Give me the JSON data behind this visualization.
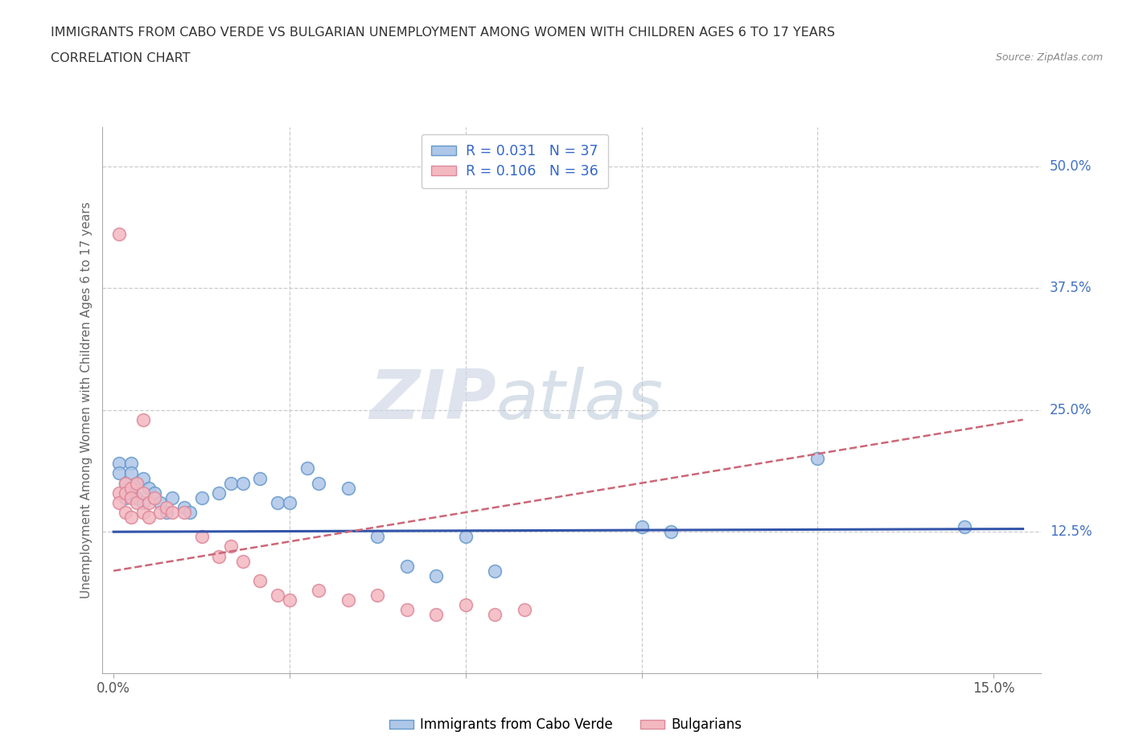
{
  "title": "IMMIGRANTS FROM CABO VERDE VS BULGARIAN UNEMPLOYMENT AMONG WOMEN WITH CHILDREN AGES 6 TO 17 YEARS",
  "subtitle": "CORRELATION CHART",
  "source": "Source: ZipAtlas.com",
  "ylabel": "Unemployment Among Women with Children Ages 6 to 17 years",
  "xlim": [
    -0.002,
    0.158
  ],
  "ylim": [
    -0.02,
    0.54
  ],
  "legend_items": [
    {
      "label": "R = 0.031   N = 37",
      "color": "#aec6e8"
    },
    {
      "label": "R = 0.106   N = 36",
      "color": "#f4b8c1"
    }
  ],
  "legend_bottom": [
    {
      "label": "Immigrants from Cabo Verde",
      "color": "#aec6e8"
    },
    {
      "label": "Bulgarians",
      "color": "#f4b8c1"
    }
  ],
  "cabo_verde_x": [
    0.001,
    0.001,
    0.002,
    0.002,
    0.003,
    0.003,
    0.003,
    0.004,
    0.004,
    0.005,
    0.005,
    0.006,
    0.007,
    0.008,
    0.009,
    0.01,
    0.012,
    0.013,
    0.015,
    0.018,
    0.02,
    0.022,
    0.025,
    0.028,
    0.03,
    0.033,
    0.035,
    0.04,
    0.045,
    0.05,
    0.055,
    0.06,
    0.065,
    0.09,
    0.095,
    0.12,
    0.145
  ],
  "cabo_verde_y": [
    0.195,
    0.185,
    0.175,
    0.16,
    0.195,
    0.185,
    0.165,
    0.175,
    0.16,
    0.18,
    0.155,
    0.17,
    0.165,
    0.155,
    0.145,
    0.16,
    0.15,
    0.145,
    0.16,
    0.165,
    0.175,
    0.175,
    0.18,
    0.155,
    0.155,
    0.19,
    0.175,
    0.17,
    0.12,
    0.09,
    0.08,
    0.12,
    0.085,
    0.13,
    0.125,
    0.2,
    0.13
  ],
  "bulgarian_x": [
    0.001,
    0.001,
    0.001,
    0.002,
    0.002,
    0.002,
    0.003,
    0.003,
    0.003,
    0.004,
    0.004,
    0.005,
    0.005,
    0.006,
    0.006,
    0.007,
    0.008,
    0.009,
    0.01,
    0.012,
    0.015,
    0.018,
    0.02,
    0.022,
    0.025,
    0.028,
    0.03,
    0.035,
    0.04,
    0.045,
    0.05,
    0.055,
    0.06,
    0.065,
    0.07,
    0.005
  ],
  "bulgarian_y": [
    0.43,
    0.165,
    0.155,
    0.175,
    0.165,
    0.145,
    0.17,
    0.16,
    0.14,
    0.175,
    0.155,
    0.165,
    0.145,
    0.155,
    0.14,
    0.16,
    0.145,
    0.15,
    0.145,
    0.145,
    0.12,
    0.1,
    0.11,
    0.095,
    0.075,
    0.06,
    0.055,
    0.065,
    0.055,
    0.06,
    0.045,
    0.04,
    0.05,
    0.04,
    0.045,
    0.24
  ],
  "cabo_verde_color": "#aec6e8",
  "cabo_verde_edge": "#6699cc",
  "bulgarian_color": "#f4b8c1",
  "bulgarian_edge": "#dd8899",
  "cabo_verde_line_color": "#3355aa",
  "bulgarian_line_color": "#cc6677",
  "watermark_zip": "ZIP",
  "watermark_atlas": "atlas",
  "background_color": "#ffffff",
  "grid_color": "#cccccc",
  "title_color": "#333333",
  "axis_label_color": "#666666",
  "right_tick_color": "#4472c4",
  "bottom_tick_color": "#555555"
}
